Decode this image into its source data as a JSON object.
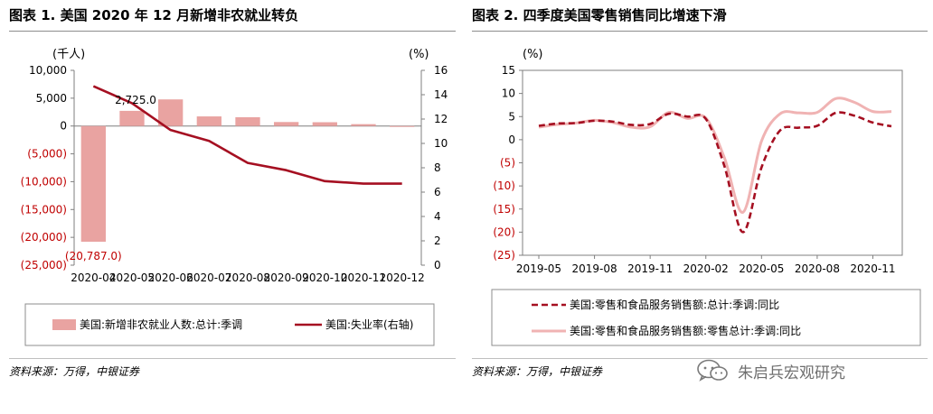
{
  "fig1": {
    "title": "图表 1. 美国 2020 年 12 月新增非农就业转负",
    "source": "资料来源：万得，中银证券",
    "chart_data": {
      "type": "bar+line",
      "left_axis_unit": "(千人)",
      "right_axis_unit": "(%)",
      "categories": [
        "2020-04",
        "2020-05",
        "2020-06",
        "2020-07",
        "2020-08",
        "2020-09",
        "2020-10",
        "2020-11",
        "2020-12"
      ],
      "bar_series": {
        "name": "美国:新增非农就业人数:总计:季调",
        "values": [
          -20787,
          2725,
          4781,
          1726,
          1583,
          716,
          680,
          336,
          -140
        ]
      },
      "line_series": {
        "name": "美国:失业率(右轴)",
        "values": [
          14.7,
          13.3,
          11.1,
          10.2,
          8.4,
          7.8,
          6.9,
          6.7,
          6.7
        ]
      },
      "ylim_left": [
        -25000,
        10000
      ],
      "ylim_right": [
        0,
        16
      ],
      "left_ticks": [
        {
          "v": 10000,
          "label": "10,000"
        },
        {
          "v": 5000,
          "label": "5,000"
        },
        {
          "v": 0,
          "label": "0"
        },
        {
          "v": -5000,
          "label": "(5,000)"
        },
        {
          "v": -10000,
          "label": "(10,000)"
        },
        {
          "v": -15000,
          "label": "(15,000)"
        },
        {
          "v": -20000,
          "label": "(20,000)"
        },
        {
          "v": -25000,
          "label": "(25,000)"
        }
      ],
      "right_ticks": [
        {
          "v": 16,
          "label": "16"
        },
        {
          "v": 14,
          "label": "14"
        },
        {
          "v": 12,
          "label": "12"
        },
        {
          "v": 10,
          "label": "10"
        },
        {
          "v": 8,
          "label": "8"
        },
        {
          "v": 6,
          "label": "6"
        },
        {
          "v": 4,
          "label": "4"
        },
        {
          "v": 2,
          "label": "2"
        },
        {
          "v": 0,
          "label": "0"
        }
      ],
      "data_labels": [
        {
          "index": 0,
          "series": "bar",
          "label": "(20,787.0)"
        },
        {
          "index": 1,
          "series": "bar",
          "label": "2,725.0"
        }
      ],
      "colors": {
        "bar": "#e9a3a1",
        "line": "#a50f21",
        "negative_tick": "#c00000"
      },
      "legend_position": "bottom"
    }
  },
  "fig2": {
    "title": "图表 2. 四季度美国零售销售同比增速下滑",
    "source": "资料来源：万得，中银证券",
    "chart_data": {
      "type": "line",
      "y_unit": "(%)",
      "x_tick_labels": [
        "2019-05",
        "2019-08",
        "2019-11",
        "2020-02",
        "2020-05",
        "2020-08",
        "2020-11"
      ],
      "x": [
        "2019-05",
        "2019-06",
        "2019-07",
        "2019-08",
        "2019-09",
        "2019-10",
        "2019-11",
        "2019-12",
        "2020-01",
        "2020-02",
        "2020-03",
        "2020-04",
        "2020-05",
        "2020-06",
        "2020-07",
        "2020-08",
        "2020-09",
        "2020-10",
        "2020-11",
        "2020-12"
      ],
      "series": [
        {
          "name": "美国:零售和食品服务销售额:总计:季调:同比",
          "style": "dashed",
          "values": [
            3.0,
            3.5,
            3.6,
            4.1,
            3.9,
            3.2,
            3.4,
            5.6,
            5.0,
            4.5,
            -5.7,
            -20.0,
            -6.0,
            2.0,
            2.6,
            3.0,
            5.8,
            5.2,
            3.7,
            2.9
          ]
        },
        {
          "name": "美国:零售和食品服务销售额:零售总计:季调:同比",
          "style": "solid",
          "values": [
            2.7,
            3.3,
            3.6,
            4.2,
            3.7,
            2.7,
            2.8,
            5.9,
            4.6,
            4.7,
            -3.9,
            -15.7,
            -0.3,
            5.6,
            5.8,
            5.9,
            8.9,
            8.1,
            6.1,
            6.1
          ]
        }
      ],
      "ylim": [
        -25,
        15
      ],
      "y_ticks": [
        {
          "v": 15,
          "label": "15"
        },
        {
          "v": 10,
          "label": "10"
        },
        {
          "v": 5,
          "label": "5"
        },
        {
          "v": 0,
          "label": "0"
        },
        {
          "v": -5,
          "label": "(5)"
        },
        {
          "v": -10,
          "label": "(10)"
        },
        {
          "v": -15,
          "label": "(15)"
        },
        {
          "v": -20,
          "label": "(20)"
        },
        {
          "v": -25,
          "label": "(25)"
        }
      ],
      "grid": false,
      "colors": {
        "dashed": "#a50f21",
        "solid": "#f0b3b3",
        "negative_tick": "#c00000"
      },
      "legend_position": "bottom"
    }
  },
  "watermark": {
    "text": "朱启兵宏观研究",
    "icon": "wechat-icon"
  }
}
